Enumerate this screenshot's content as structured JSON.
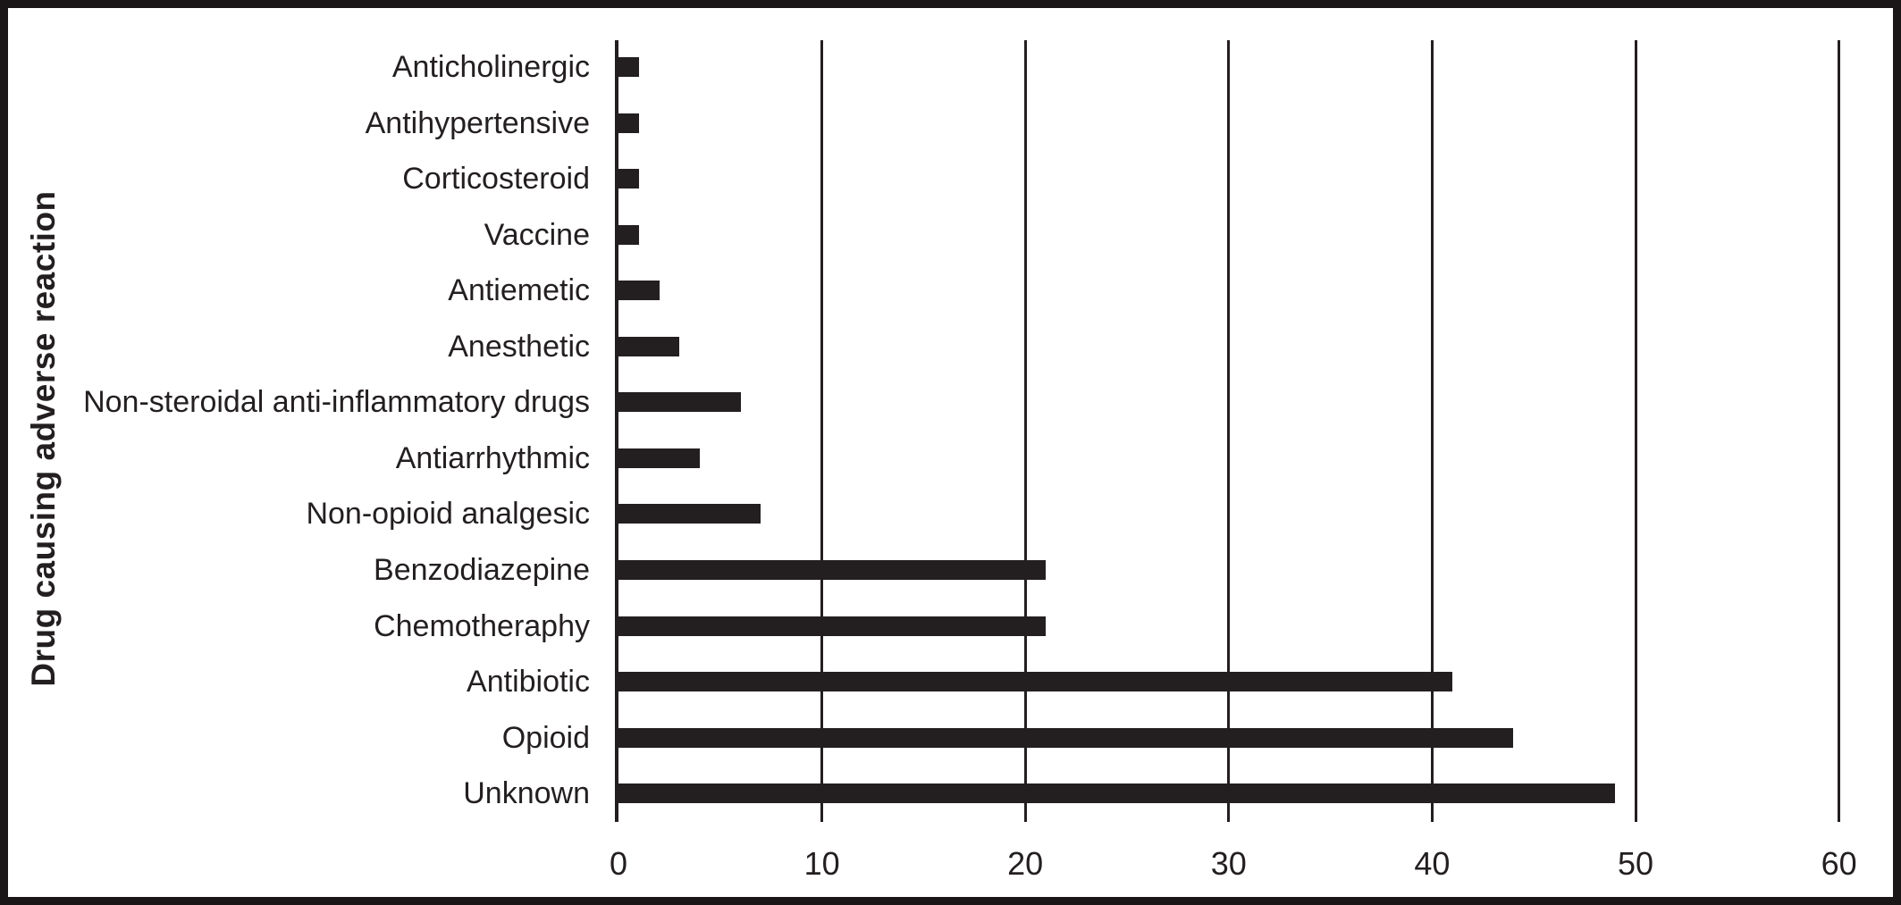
{
  "figure": {
    "background": "#ffffff",
    "frame_color": "#1a1516",
    "ink_color": "#231f20"
  },
  "chart_data": {
    "type": "bar",
    "orientation": "horizontal",
    "title": "",
    "xlabel": "",
    "ylabel": "Drug causing adverse reaction",
    "categories": [
      "Anticholinergic",
      "Antihypertensive",
      "Corticosteroid",
      "Vaccine",
      "Antiemetic",
      "Anesthetic",
      "Non-steroidal anti-inflammatory drugs",
      "Antiarrhythmic",
      "Non-opioid analgesic",
      "Benzodiazepine",
      "Chemotheraphy",
      "Antibiotic",
      "Opioid",
      "Unknown"
    ],
    "values": [
      1,
      1,
      1,
      1,
      2,
      3,
      6,
      4,
      7,
      21,
      21,
      41,
      44,
      49
    ],
    "xlim": [
      0,
      60
    ],
    "xticks": [
      0,
      10,
      20,
      30,
      40,
      50,
      60
    ],
    "grid": "vertical",
    "legend": "none",
    "bar_color": "#231f20"
  }
}
